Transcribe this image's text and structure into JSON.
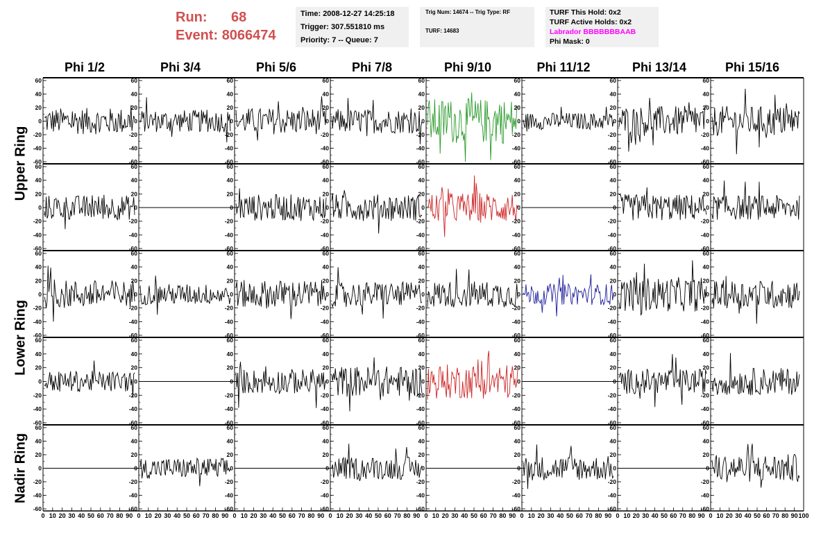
{
  "header": {
    "run_label": "Run:",
    "run_value": "68",
    "event_label": "Event:",
    "event_value": "8066474",
    "time": "Time: 2008-12-27 14:25:18",
    "trigger": "Trigger: 307.551810 ms",
    "priority": "Priority: 7 -- Queue: 7",
    "trig_num": "Trig Num: 14674 -- Trig Type: RF",
    "turf": "TURF: 14683",
    "turf_this_hold": "TURF This Hold: 0x2",
    "turf_active_holds": "TURF Active Holds: 0x2",
    "labrador": "Labrador BBBBBBBAAB",
    "phi_mask": "Phi Mask: 0"
  },
  "columns": [
    "Phi 1/2",
    "Phi 3/4",
    "Phi 5/6",
    "Phi 7/8",
    "Phi 9/10",
    "Phi 11/12",
    "Phi 13/14",
    "Phi 15/16"
  ],
  "rings": [
    "Upper Ring",
    "Lower Ring",
    "Nadir Ring"
  ],
  "chart_data": {
    "type": "line",
    "description_axes": "Each panel shows a waveform trace; y axis range -60 to 60, x axis 0 to 100",
    "ylim": [
      -60,
      60
    ],
    "xlim": [
      0,
      100
    ],
    "y_ticks": [
      -60,
      -40,
      -20,
      0,
      20,
      40,
      60
    ],
    "x_ticks": [
      0,
      10,
      20,
      30,
      40,
      50,
      60,
      70,
      80,
      90,
      100
    ],
    "colors": {
      "default": "#000000",
      "green": "#2a9a2a",
      "red": "#cc2222",
      "blue": "#1a1a9a"
    },
    "panels": [
      [
        {
          "amp": 14,
          "flat": false,
          "color": "default"
        },
        {
          "amp": 12,
          "flat": false,
          "color": "default"
        },
        {
          "amp": 14,
          "flat": false,
          "color": "default"
        },
        {
          "amp": 13,
          "flat": false,
          "color": "default"
        },
        {
          "amp": 24,
          "flat": false,
          "color": "green"
        },
        {
          "amp": 9,
          "flat": false,
          "color": "default"
        },
        {
          "amp": 16,
          "flat": false,
          "color": "default"
        },
        {
          "amp": 16,
          "flat": false,
          "color": "default"
        }
      ],
      [
        {
          "amp": 13,
          "flat": false,
          "color": "default"
        },
        {
          "amp": 0,
          "flat": true,
          "color": "default"
        },
        {
          "amp": 14,
          "flat": false,
          "color": "default"
        },
        {
          "amp": 14,
          "flat": false,
          "color": "default"
        },
        {
          "amp": 16,
          "flat": false,
          "color": "red"
        },
        {
          "amp": 0,
          "flat": true,
          "color": "default"
        },
        {
          "amp": 14,
          "flat": false,
          "color": "default"
        },
        {
          "amp": 13,
          "flat": false,
          "color": "default"
        }
      ],
      [
        {
          "amp": 15,
          "flat": false,
          "color": "default"
        },
        {
          "amp": 11,
          "flat": false,
          "color": "default"
        },
        {
          "amp": 15,
          "flat": false,
          "color": "default"
        },
        {
          "amp": 13,
          "flat": false,
          "color": "default"
        },
        {
          "amp": 14,
          "flat": false,
          "color": "default"
        },
        {
          "amp": 11,
          "flat": false,
          "color": "blue"
        },
        {
          "amp": 18,
          "flat": false,
          "color": "default"
        },
        {
          "amp": 15,
          "flat": false,
          "color": "default"
        }
      ],
      [
        {
          "amp": 11,
          "flat": false,
          "color": "default"
        },
        {
          "amp": 0,
          "flat": true,
          "color": "default"
        },
        {
          "amp": 13,
          "flat": false,
          "color": "default"
        },
        {
          "amp": 16,
          "flat": false,
          "color": "default"
        },
        {
          "amp": 18,
          "flat": false,
          "color": "red"
        },
        {
          "amp": 0,
          "flat": true,
          "color": "default"
        },
        {
          "amp": 13,
          "flat": false,
          "color": "default"
        },
        {
          "amp": 14,
          "flat": false,
          "color": "default"
        }
      ],
      [
        {
          "amp": 0,
          "flat": true,
          "color": "default"
        },
        {
          "amp": 11,
          "flat": false,
          "color": "default"
        },
        {
          "amp": 0,
          "flat": true,
          "color": "default"
        },
        {
          "amp": 12,
          "flat": false,
          "color": "default"
        },
        {
          "amp": 0,
          "flat": true,
          "color": "default"
        },
        {
          "amp": 13,
          "flat": false,
          "color": "default"
        },
        {
          "amp": 0,
          "flat": true,
          "color": "default"
        },
        {
          "amp": 15,
          "flat": false,
          "color": "default"
        }
      ]
    ]
  }
}
